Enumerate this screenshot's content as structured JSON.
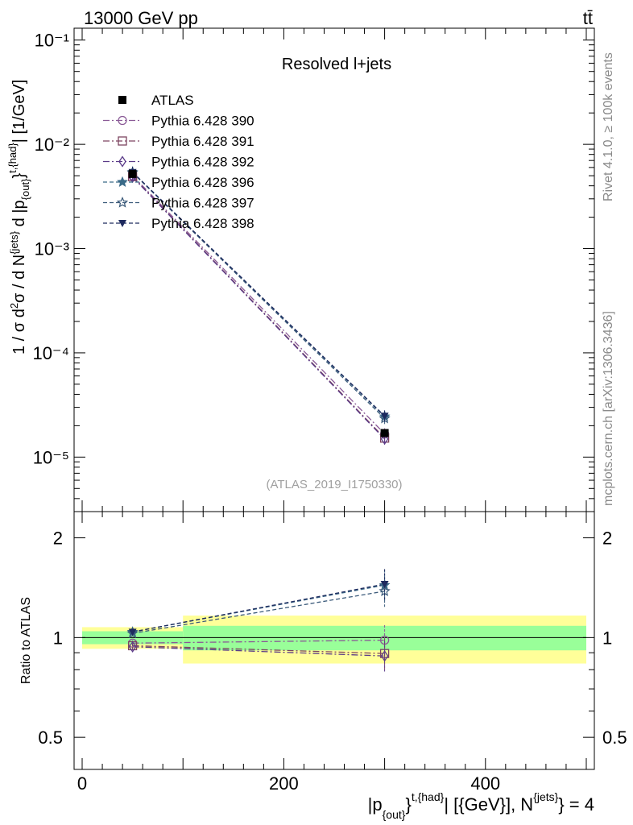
{
  "header": {
    "energy_label": "13000 GeV pp",
    "process_label": "tt̄",
    "side_top": "Rivet 4.1.0, ≥ 100k events",
    "side_bottom": "mcplots.cern.ch [arXiv:1306.3436]"
  },
  "chart_data": [
    {
      "type": "line",
      "panel": "main",
      "title": "Resolved l+jets",
      "watermark": "(ATLAS_2019_I1750330)",
      "ylabel": "1 / σ d²σ / d N^{jets} d |p_{out}^{t,{had}}| [1/GeV]",
      "yscale": "log",
      "ylim": [
        3e-06,
        0.13
      ],
      "xlim": [
        -8,
        508
      ],
      "y_ticks": [
        {
          "value": 1e-05,
          "label": "10⁻⁵"
        },
        {
          "value": 0.0001,
          "label": "10⁻⁴"
        },
        {
          "value": 0.001,
          "label": "10⁻³"
        },
        {
          "value": 0.01,
          "label": "10⁻²"
        },
        {
          "value": 0.1,
          "label": "10⁻¹"
        }
      ],
      "x": [
        50,
        300
      ],
      "bins": [
        [
          0,
          100
        ],
        [
          100,
          500
        ]
      ],
      "data": {
        "name": "ATLAS",
        "values": [
          0.0052,
          1.7e-05
        ]
      },
      "series": [
        {
          "name": "Pythia 6.428 390",
          "values": [
            0.005,
            1.67e-05
          ],
          "color": "#8a5a96",
          "marker": "circle-open",
          "dash": "8,3,2,3"
        },
        {
          "name": "Pythia 6.428 391",
          "values": [
            0.0049,
            1.52e-05
          ],
          "color": "#7d4560",
          "marker": "square-open",
          "dash": "8,3,2,3"
        },
        {
          "name": "Pythia 6.428 392",
          "values": [
            0.00485,
            1.49e-05
          ],
          "color": "#5a3a88",
          "marker": "diamond-open",
          "dash": "8,3,2,3"
        },
        {
          "name": "Pythia 6.428 396",
          "values": [
            0.0054,
            2.45e-05
          ],
          "color": "#3a6a88",
          "marker": "star-filled",
          "dash": "5,3"
        },
        {
          "name": "Pythia 6.428 397",
          "values": [
            0.00535,
            2.35e-05
          ],
          "color": "#3a5a7a",
          "marker": "star-open",
          "dash": "5,3"
        },
        {
          "name": "Pythia 6.428 398",
          "values": [
            0.0054,
            2.48e-05
          ],
          "color": "#1e2a5e",
          "marker": "triangle-down-filled",
          "dash": "5,3"
        }
      ]
    },
    {
      "type": "line",
      "panel": "ratio",
      "ylabel": "Ratio to ATLAS",
      "xlabel": "|p_{out}^{t,{had}}| [{GeV}], N^{jets} = 4",
      "yscale": "log",
      "ylim": [
        0.4,
        2.4
      ],
      "xlim": [
        -8,
        508
      ],
      "x_ticks": [
        0,
        200,
        400
      ],
      "y_ticks": [
        0.5,
        1,
        2
      ],
      "x": [
        50,
        300
      ],
      "bands": [
        {
          "bin": [
            0,
            100
          ],
          "inner": [
            0.955,
            1.045
          ],
          "outer": [
            0.925,
            1.075
          ]
        },
        {
          "bin": [
            100,
            500
          ],
          "inner": [
            0.915,
            1.085
          ],
          "outer": [
            0.835,
            1.165
          ]
        }
      ],
      "series": [
        {
          "name": "Pythia 6.428 390",
          "values": [
            0.962,
            0.982
          ]
        },
        {
          "name": "Pythia 6.428 391",
          "values": [
            0.945,
            0.895
          ]
        },
        {
          "name": "Pythia 6.428 392",
          "values": [
            0.938,
            0.88
          ]
        },
        {
          "name": "Pythia 6.428 396",
          "values": [
            1.04,
            1.44
          ]
        },
        {
          "name": "Pythia 6.428 397",
          "values": [
            1.03,
            1.38
          ]
        },
        {
          "name": "Pythia 6.428 398",
          "values": [
            1.04,
            1.45
          ]
        }
      ]
    }
  ]
}
